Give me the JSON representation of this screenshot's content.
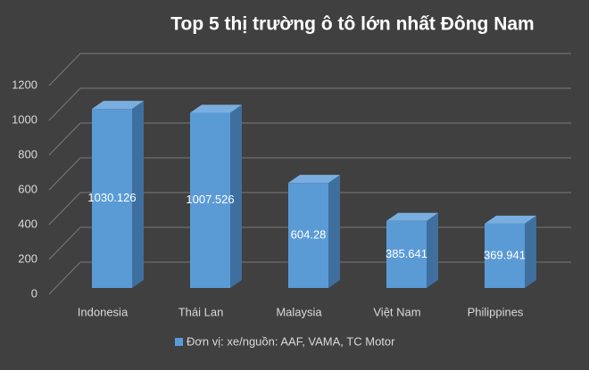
{
  "chart_data": {
    "type": "bar3d",
    "title": "Top 5 thị trường ô tô lớn nhất Đông Nam",
    "categories": [
      "Indonesia",
      "Thái Lan",
      "Malaysia",
      "Việt Nam",
      "Philippines"
    ],
    "series": [
      {
        "name": "Đơn vị: xe/nguồn: AAF, VAMA, TC Motor",
        "color": "#5b9bd5",
        "values": [
          1030.126,
          1007.526,
          604.28,
          385.641,
          369.941
        ]
      }
    ],
    "ylim": [
      0,
      1200
    ],
    "yticks": [
      0,
      200,
      400,
      600,
      800,
      1000,
      1200
    ],
    "grid": true,
    "legend": "bottom"
  }
}
